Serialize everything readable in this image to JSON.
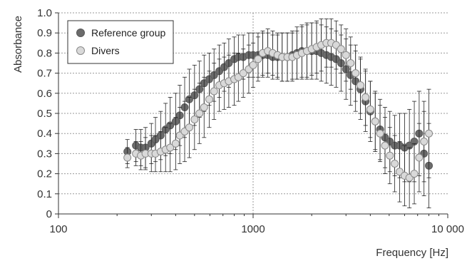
{
  "chart_data": {
    "type": "scatter",
    "title": "",
    "xlabel": "Frequency [Hz]",
    "ylabel": "Absorbance",
    "xscale": "log",
    "xlim": [
      100,
      10000
    ],
    "ylim": [
      0,
      1.0
    ],
    "x_ticks": [
      100,
      1000,
      10000
    ],
    "x_tick_labels": [
      "100",
      "1000",
      "10 000"
    ],
    "y_ticks": [
      0,
      0.1,
      0.2,
      0.3,
      0.4,
      0.5,
      0.6,
      0.7,
      0.8,
      0.9,
      1.0
    ],
    "y_tick_labels": [
      "0",
      "0.1",
      "0.2",
      "0.3",
      "0.4",
      "0.5",
      "0.6",
      "0.7",
      "0.8",
      "0.9",
      "1.0"
    ],
    "grid": "horizontal dotted, vertical dotted at 1000",
    "legend_position": "top-left",
    "error_bars": "±1 SD (approximate)",
    "series": [
      {
        "name": "Reference group",
        "marker_color": "#6b6b6b",
        "x": [
          226,
          250,
          265,
          280,
          300,
          315,
          335,
          355,
          375,
          400,
          420,
          445,
          470,
          500,
          530,
          560,
          595,
          630,
          670,
          710,
          750,
          800,
          840,
          890,
          950,
          1000,
          1060,
          1120,
          1190,
          1260,
          1335,
          1410,
          1500,
          1590,
          1680,
          1780,
          1890,
          2000,
          2120,
          2240,
          2380,
          2520,
          2670,
          2830,
          3000,
          3170,
          3360,
          3560,
          3780,
          4000,
          4240,
          4490,
          4760,
          5040,
          5340,
          5660,
          6000,
          6350,
          6730,
          7130,
          7550,
          8000
        ],
        "values": [
          0.31,
          0.34,
          0.33,
          0.33,
          0.35,
          0.37,
          0.39,
          0.42,
          0.44,
          0.46,
          0.49,
          0.53,
          0.57,
          0.59,
          0.62,
          0.65,
          0.67,
          0.69,
          0.71,
          0.73,
          0.75,
          0.77,
          0.78,
          0.78,
          0.79,
          0.79,
          0.79,
          0.79,
          0.79,
          0.78,
          0.78,
          0.78,
          0.78,
          0.79,
          0.8,
          0.81,
          0.81,
          0.81,
          0.81,
          0.8,
          0.79,
          0.78,
          0.77,
          0.75,
          0.72,
          0.69,
          0.66,
          0.62,
          0.56,
          0.51,
          0.46,
          0.42,
          0.38,
          0.36,
          0.34,
          0.34,
          0.33,
          0.34,
          0.36,
          0.4,
          0.3,
          0.24
        ],
        "err": [
          0.06,
          0.08,
          0.09,
          0.1,
          0.1,
          0.11,
          0.12,
          0.13,
          0.14,
          0.14,
          0.15,
          0.15,
          0.15,
          0.15,
          0.14,
          0.14,
          0.13,
          0.13,
          0.13,
          0.12,
          0.12,
          0.11,
          0.11,
          0.11,
          0.11,
          0.11,
          0.11,
          0.11,
          0.11,
          0.11,
          0.11,
          0.12,
          0.12,
          0.12,
          0.13,
          0.13,
          0.14,
          0.14,
          0.14,
          0.14,
          0.14,
          0.14,
          0.14,
          0.14,
          0.15,
          0.15,
          0.15,
          0.15,
          0.15,
          0.15,
          0.15,
          0.15,
          0.15,
          0.15,
          0.15,
          0.16,
          0.17,
          0.18,
          0.2,
          0.21,
          0.21,
          0.21
        ]
      },
      {
        "name": "Divers",
        "marker_color": "#d9d9d9",
        "x": [
          226,
          250,
          265,
          280,
          300,
          315,
          335,
          355,
          375,
          400,
          420,
          445,
          470,
          500,
          530,
          560,
          595,
          630,
          670,
          710,
          750,
          800,
          840,
          890,
          950,
          1000,
          1060,
          1120,
          1190,
          1260,
          1335,
          1410,
          1500,
          1590,
          1680,
          1780,
          1890,
          2000,
          2120,
          2240,
          2380,
          2520,
          2670,
          2830,
          3000,
          3170,
          3360,
          3560,
          3780,
          4000,
          4240,
          4490,
          4760,
          5040,
          5340,
          5660,
          6000,
          6350,
          6730,
          7130,
          7550,
          8000
        ],
        "values": [
          0.28,
          0.3,
          0.29,
          0.3,
          0.3,
          0.3,
          0.31,
          0.32,
          0.33,
          0.35,
          0.39,
          0.41,
          0.43,
          0.47,
          0.5,
          0.53,
          0.57,
          0.61,
          0.64,
          0.65,
          0.66,
          0.67,
          0.68,
          0.7,
          0.72,
          0.74,
          0.77,
          0.8,
          0.81,
          0.8,
          0.79,
          0.78,
          0.78,
          0.78,
          0.79,
          0.8,
          0.81,
          0.82,
          0.83,
          0.84,
          0.85,
          0.85,
          0.84,
          0.82,
          0.79,
          0.75,
          0.7,
          0.64,
          0.58,
          0.52,
          0.46,
          0.4,
          0.34,
          0.29,
          0.25,
          0.21,
          0.19,
          0.18,
          0.2,
          0.28,
          0.36,
          0.4
        ],
        "err": [
          0.05,
          0.06,
          0.07,
          0.08,
          0.09,
          0.09,
          0.1,
          0.11,
          0.12,
          0.13,
          0.14,
          0.15,
          0.15,
          0.15,
          0.15,
          0.15,
          0.14,
          0.14,
          0.13,
          0.13,
          0.13,
          0.13,
          0.12,
          0.12,
          0.12,
          0.11,
          0.11,
          0.11,
          0.11,
          0.11,
          0.11,
          0.12,
          0.12,
          0.12,
          0.12,
          0.13,
          0.13,
          0.13,
          0.13,
          0.13,
          0.12,
          0.12,
          0.12,
          0.12,
          0.13,
          0.13,
          0.14,
          0.14,
          0.14,
          0.14,
          0.14,
          0.14,
          0.14,
          0.14,
          0.14,
          0.15,
          0.15,
          0.15,
          0.15,
          0.17,
          0.2,
          0.22
        ]
      }
    ]
  }
}
